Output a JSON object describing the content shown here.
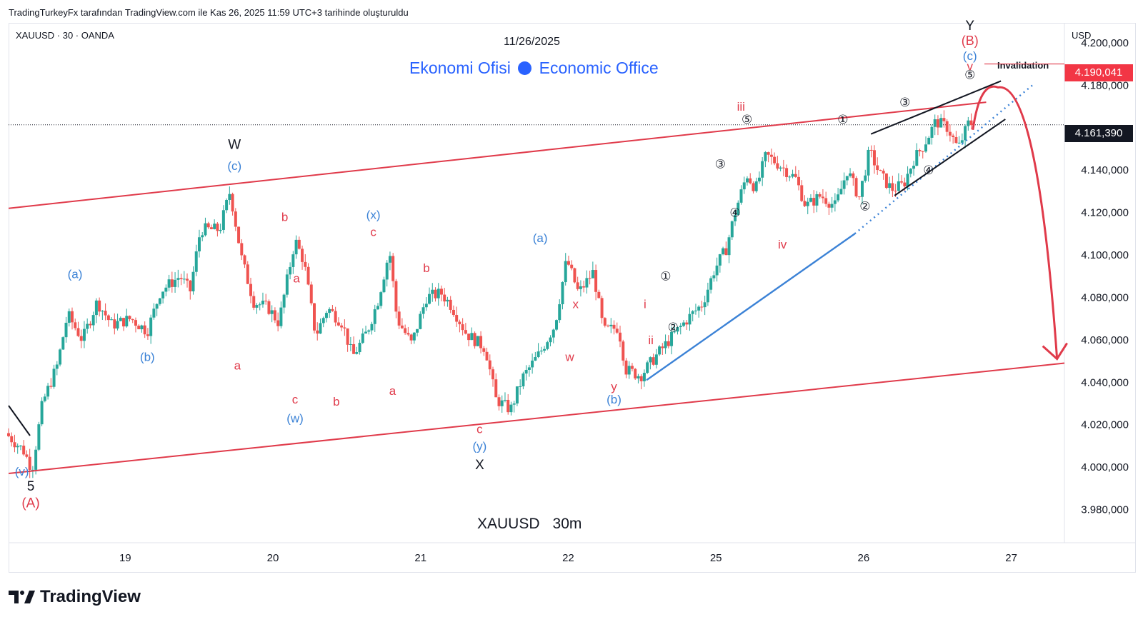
{
  "credit": "TradingTurkeyFx tarafından TradingView.com ile Kas 26, 2025 11:59 UTC+3 tarihinde oluşturuldu",
  "symbol_line": "XAUUSD · 30 · OANDA",
  "date_label": "11/26/2025",
  "brand": {
    "left": "Ekonomi Ofisi",
    "right": "Economic Office"
  },
  "chart_title": {
    "symbol": "XAUUSD",
    "timeframe": "30m"
  },
  "currency": "USD",
  "logo": "TradingView",
  "invalidation": {
    "label": "Invalidation",
    "price": "4.190,041"
  },
  "current_price": "4.161,390",
  "colors": {
    "up": "#26a69a",
    "down": "#ef5350",
    "channel": "#e03a4a",
    "blue": "#3b82d6",
    "black": "#131722"
  },
  "chart_data": {
    "type": "candlestick",
    "title": "",
    "xlabel": "",
    "ylabel": "",
    "ylim": [
      3970,
      4205
    ],
    "y_ticks": [
      {
        "value": 4200,
        "label": "4.200,000"
      },
      {
        "value": 4180,
        "label": "4.180,000"
      },
      {
        "value": 4140,
        "label": "4.140,000"
      },
      {
        "value": 4120,
        "label": "4.120,000"
      },
      {
        "value": 4100,
        "label": "4.100,000"
      },
      {
        "value": 4080,
        "label": "4.080,000"
      },
      {
        "value": 4060,
        "label": "4.060,000"
      },
      {
        "value": 4040,
        "label": "4.040,000"
      },
      {
        "value": 4020,
        "label": "4.020,000"
      },
      {
        "value": 4000,
        "label": "4.000,000"
      },
      {
        "value": 3980,
        "label": "3.980,000"
      }
    ],
    "x_ticks": [
      {
        "t": 0.79,
        "label": "19"
      },
      {
        "t": 1.79,
        "label": "20"
      },
      {
        "t": 2.79,
        "label": "21"
      },
      {
        "t": 3.79,
        "label": "22"
      },
      {
        "t": 4.79,
        "label": "25"
      },
      {
        "t": 5.79,
        "label": "26"
      },
      {
        "t": 6.79,
        "label": "27"
      }
    ],
    "xlim": [
      0,
      7.15
    ],
    "price_path": [
      [
        0.0,
        4016
      ],
      [
        0.12,
        4008
      ],
      [
        0.18,
        3999
      ],
      [
        0.25,
        4030
      ],
      [
        0.35,
        4048
      ],
      [
        0.42,
        4072
      ],
      [
        0.52,
        4060
      ],
      [
        0.62,
        4078
      ],
      [
        0.72,
        4067
      ],
      [
        0.85,
        4070
      ],
      [
        0.96,
        4064
      ],
      [
        1.05,
        4083
      ],
      [
        1.18,
        4090
      ],
      [
        1.25,
        4083
      ],
      [
        1.32,
        4112
      ],
      [
        1.45,
        4112
      ],
      [
        1.52,
        4130
      ],
      [
        1.6,
        4098
      ],
      [
        1.68,
        4078
      ],
      [
        1.78,
        4075
      ],
      [
        1.85,
        4068
      ],
      [
        1.96,
        4107
      ],
      [
        2.02,
        4097
      ],
      [
        2.1,
        4062
      ],
      [
        2.18,
        4075
      ],
      [
        2.28,
        4068
      ],
      [
        2.35,
        4052
      ],
      [
        2.45,
        4064
      ],
      [
        2.52,
        4078
      ],
      [
        2.6,
        4102
      ],
      [
        2.65,
        4070
      ],
      [
        2.75,
        4058
      ],
      [
        2.85,
        4080
      ],
      [
        2.95,
        4082
      ],
      [
        3.02,
        4076
      ],
      [
        3.12,
        4063
      ],
      [
        3.25,
        4056
      ],
      [
        3.32,
        4032
      ],
      [
        3.42,
        4027
      ],
      [
        3.5,
        4042
      ],
      [
        3.62,
        4054
      ],
      [
        3.72,
        4067
      ],
      [
        3.8,
        4098
      ],
      [
        3.88,
        4082
      ],
      [
        3.98,
        4092
      ],
      [
        4.05,
        4064
      ],
      [
        4.15,
        4066
      ],
      [
        4.2,
        4046
      ],
      [
        4.3,
        4043
      ],
      [
        4.4,
        4052
      ],
      [
        4.52,
        4062
      ],
      [
        4.62,
        4070
      ],
      [
        4.72,
        4077
      ],
      [
        4.8,
        4093
      ],
      [
        4.88,
        4103
      ],
      [
        4.94,
        4120
      ],
      [
        5.02,
        4138
      ],
      [
        5.08,
        4131
      ],
      [
        5.15,
        4147
      ],
      [
        5.25,
        4142
      ],
      [
        5.35,
        4136
      ],
      [
        5.42,
        4123
      ],
      [
        5.52,
        4128
      ],
      [
        5.62,
        4123
      ],
      [
        5.7,
        4140
      ],
      [
        5.78,
        4127
      ],
      [
        5.85,
        4149
      ],
      [
        5.92,
        4138
      ],
      [
        6.0,
        4131
      ],
      [
        6.08,
        4133
      ],
      [
        6.15,
        4145
      ],
      [
        6.22,
        4152
      ],
      [
        6.3,
        4163
      ],
      [
        6.38,
        4160
      ],
      [
        6.45,
        4150
      ],
      [
        6.52,
        4162
      ]
    ],
    "channel_upper": [
      [
        0,
        4122
      ],
      [
        6.62,
        4172
      ]
    ],
    "channel_lower": [
      [
        0,
        3997
      ],
      [
        7.15,
        4049
      ]
    ],
    "blue_trendline": [
      [
        4.32,
        4041
      ],
      [
        5.73,
        4110
      ]
    ],
    "blue_dotted": [
      [
        5.73,
        4110
      ],
      [
        6.95,
        4181
      ]
    ],
    "wedge_upper": [
      [
        5.84,
        4157
      ],
      [
        6.72,
        4182
      ]
    ],
    "wedge_lower": [
      [
        6.0,
        4128
      ],
      [
        6.75,
        4164
      ]
    ],
    "projection_arrow": {
      "from": [
        6.53,
        4159
      ],
      "peak": [
        6.7,
        4179
      ],
      "to": [
        7.1,
        4051
      ]
    },
    "labels": [
      {
        "t": 0.09,
        "v": 3996,
        "text": "(v)",
        "color": "blue"
      },
      {
        "t": 0.15,
        "v": 3989,
        "text": "5",
        "color": "black",
        "size": 19
      },
      {
        "t": 0.15,
        "v": 3981,
        "text": "(A)",
        "color": "red",
        "size": 19
      },
      {
        "t": 0.45,
        "v": 4089,
        "text": "(a)",
        "color": "blue"
      },
      {
        "t": 0.94,
        "v": 4050,
        "text": "(b)",
        "color": "blue"
      },
      {
        "t": 1.53,
        "v": 4150,
        "text": "W",
        "color": "black",
        "size": 19
      },
      {
        "t": 1.53,
        "v": 4140,
        "text": "(c)",
        "color": "blue"
      },
      {
        "t": 1.55,
        "v": 4046,
        "text": "a",
        "color": "red"
      },
      {
        "t": 1.87,
        "v": 4116,
        "text": "b",
        "color": "red"
      },
      {
        "t": 1.95,
        "v": 4087,
        "text": "a",
        "color": "red"
      },
      {
        "t": 1.94,
        "v": 4030,
        "text": "c",
        "color": "red"
      },
      {
        "t": 1.94,
        "v": 4021,
        "text": "(w)",
        "color": "blue"
      },
      {
        "t": 2.22,
        "v": 4029,
        "text": "b",
        "color": "red"
      },
      {
        "t": 2.47,
        "v": 4117,
        "text": "(x)",
        "color": "blue"
      },
      {
        "t": 2.47,
        "v": 4109,
        "text": "c",
        "color": "red"
      },
      {
        "t": 2.6,
        "v": 4034,
        "text": "a",
        "color": "red"
      },
      {
        "t": 2.83,
        "v": 4092,
        "text": "b",
        "color": "red"
      },
      {
        "t": 3.19,
        "v": 4016,
        "text": "c",
        "color": "red"
      },
      {
        "t": 3.19,
        "v": 4008,
        "text": "(y)",
        "color": "blue"
      },
      {
        "t": 3.19,
        "v": 3999,
        "text": "X",
        "color": "black",
        "size": 19
      },
      {
        "t": 3.6,
        "v": 4106,
        "text": "(a)",
        "color": "blue"
      },
      {
        "t": 3.84,
        "v": 4075,
        "text": "x",
        "color": "red"
      },
      {
        "t": 3.8,
        "v": 4050,
        "text": "w",
        "color": "red"
      },
      {
        "t": 4.1,
        "v": 4036,
        "text": "y",
        "color": "red"
      },
      {
        "t": 4.1,
        "v": 4030,
        "text": "(b)",
        "color": "blue"
      },
      {
        "t": 4.31,
        "v": 4075,
        "text": "i",
        "color": "red"
      },
      {
        "t": 4.35,
        "v": 4058,
        "text": "ii",
        "color": "red"
      },
      {
        "t": 4.96,
        "v": 4168,
        "text": "iii",
        "color": "red"
      },
      {
        "t": 5.24,
        "v": 4103,
        "text": "iv",
        "color": "red"
      },
      {
        "t": 6.51,
        "v": 4206,
        "text": "Y",
        "color": "black",
        "size": 19
      },
      {
        "t": 6.51,
        "v": 4199,
        "text": "(B)",
        "color": "red",
        "size": 18
      },
      {
        "t": 6.51,
        "v": 4192,
        "text": "(c)",
        "color": "blue"
      },
      {
        "t": 6.51,
        "v": 4187,
        "text": "v",
        "color": "red"
      }
    ],
    "circled": [
      {
        "t": 4.45,
        "v": 4088,
        "text": "①"
      },
      {
        "t": 4.5,
        "v": 4064,
        "text": "②"
      },
      {
        "t": 4.82,
        "v": 4141,
        "text": "③"
      },
      {
        "t": 4.92,
        "v": 4118,
        "text": "④"
      },
      {
        "t": 5.0,
        "v": 4162,
        "text": "⑤"
      },
      {
        "t": 5.65,
        "v": 4162,
        "text": "①"
      },
      {
        "t": 5.8,
        "v": 4121,
        "text": "②"
      },
      {
        "t": 6.07,
        "v": 4170,
        "text": "③"
      },
      {
        "t": 6.23,
        "v": 4138,
        "text": "④"
      },
      {
        "t": 6.51,
        "v": 4183,
        "text": "⑤"
      }
    ]
  }
}
